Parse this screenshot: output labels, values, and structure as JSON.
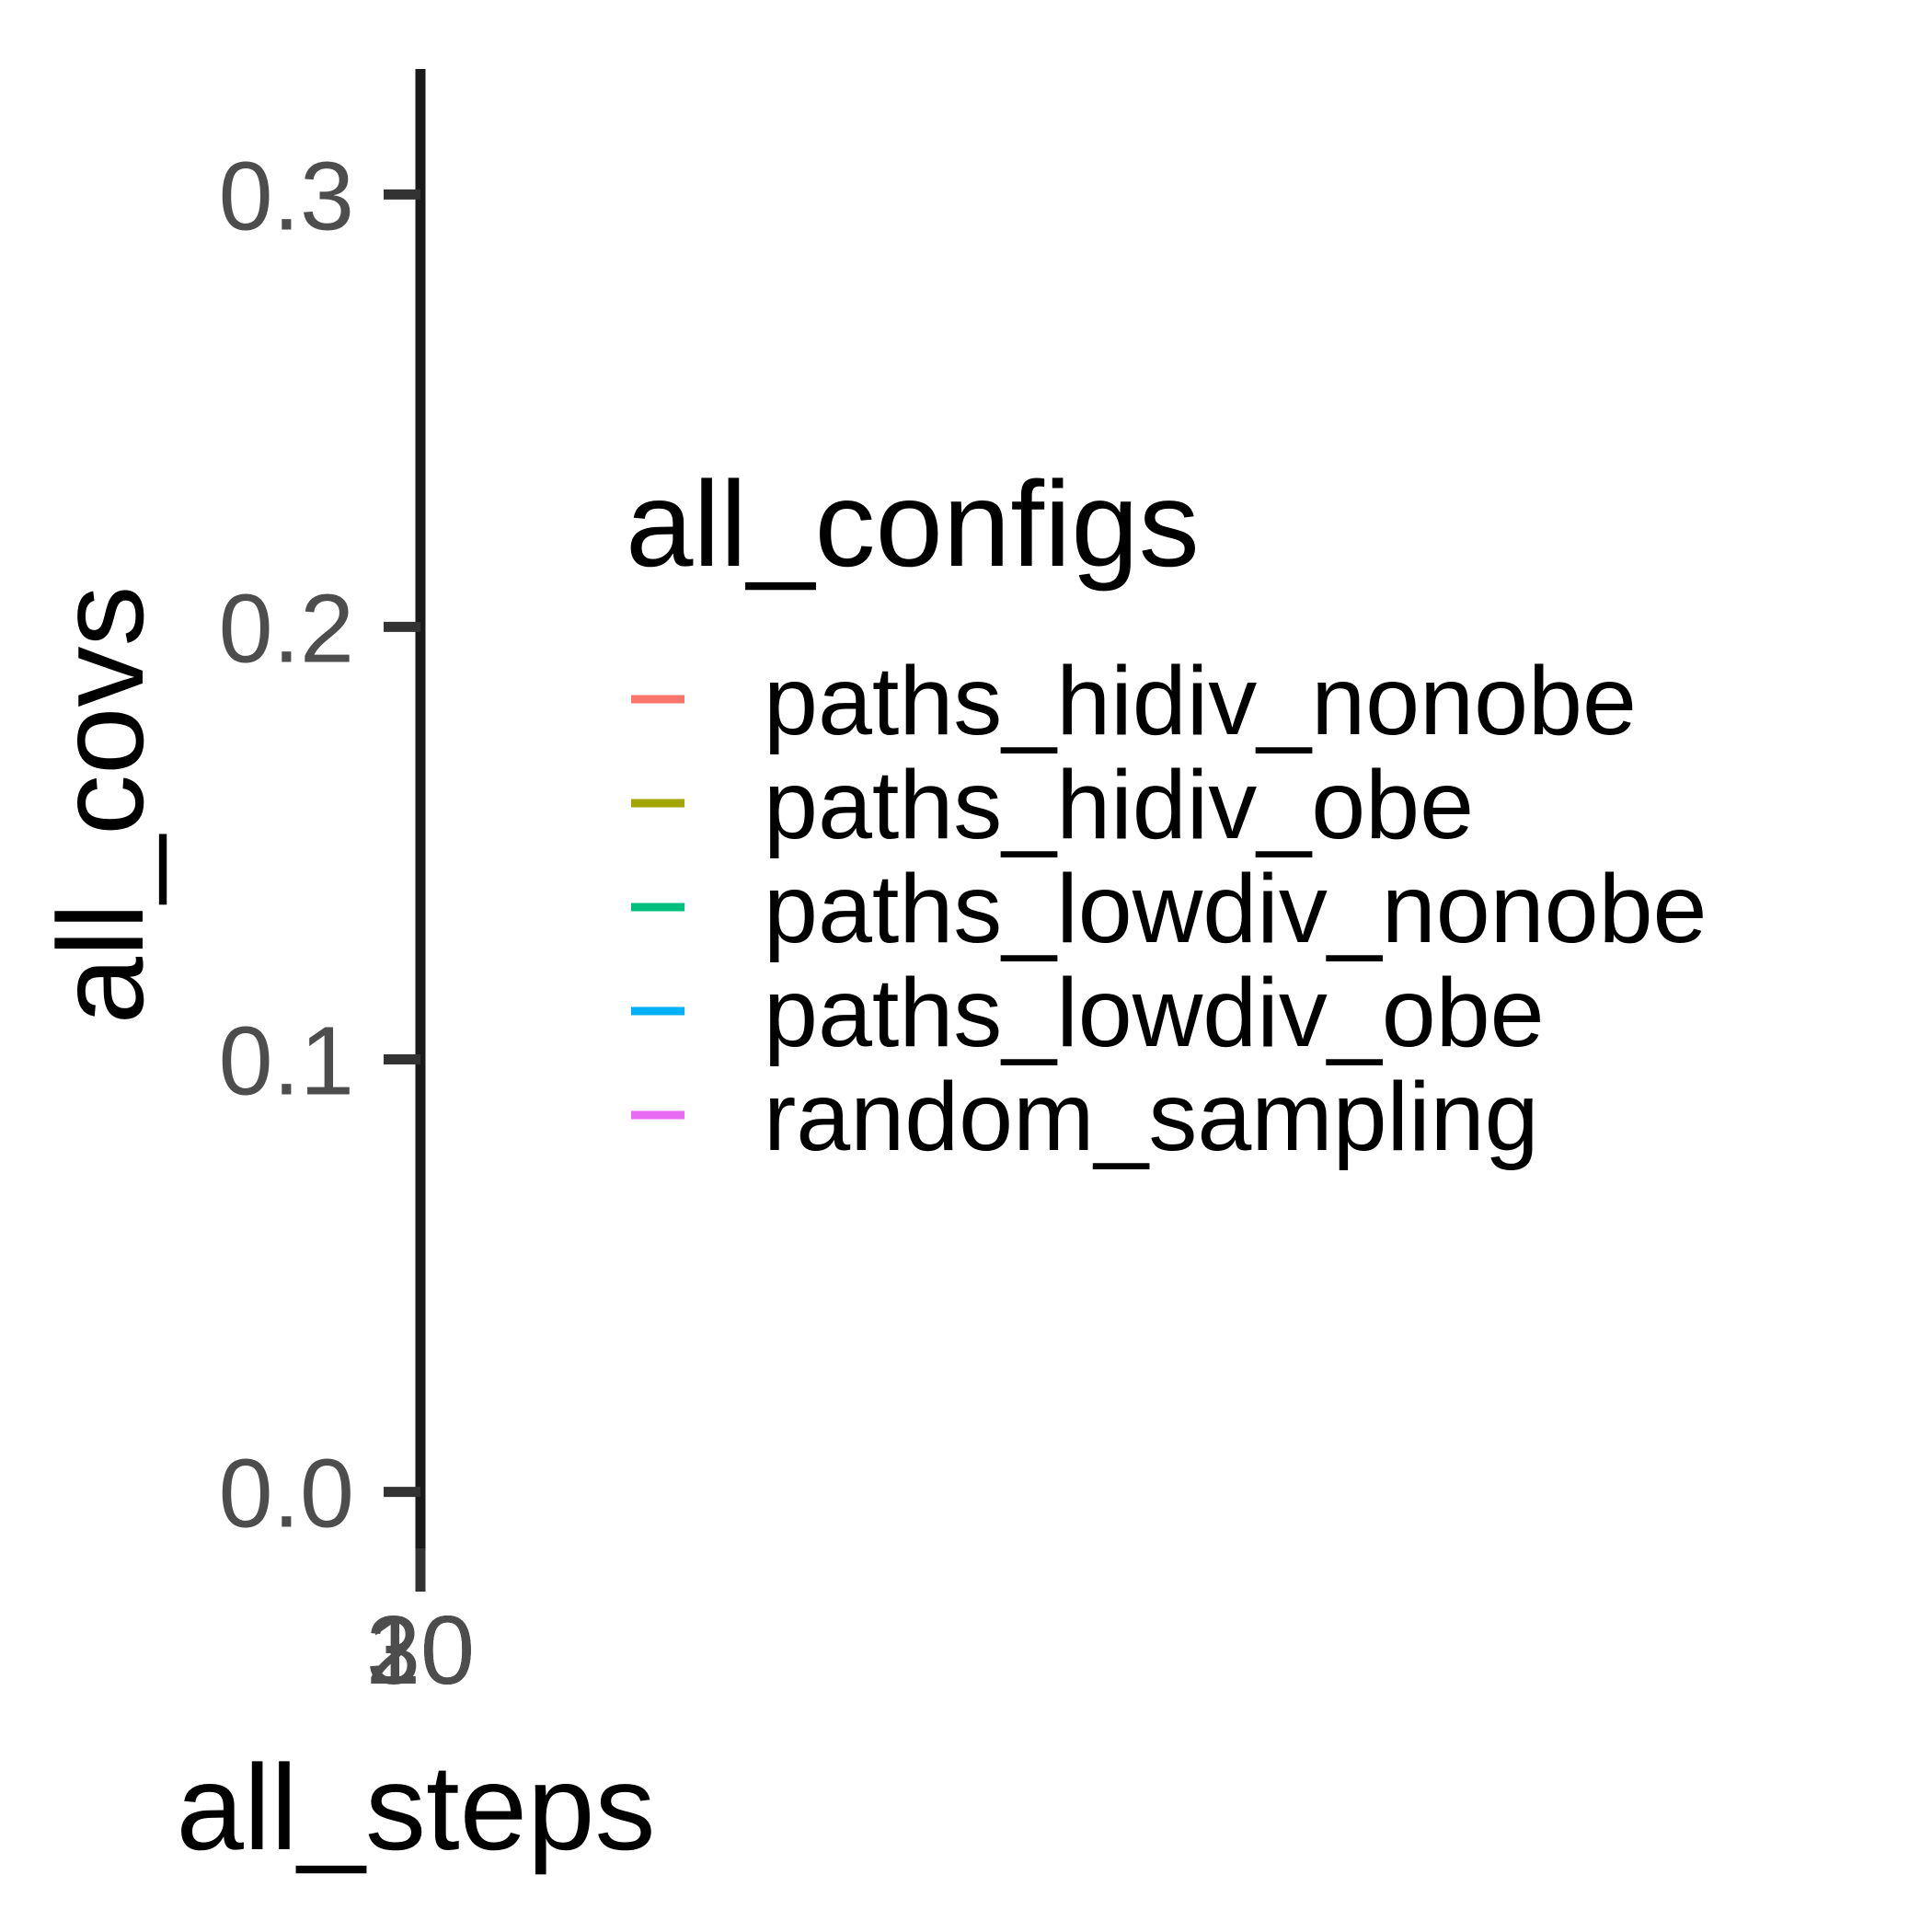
{
  "chart_data": {
    "type": "line",
    "xlabel": "all_steps",
    "ylabel": "all_covs",
    "y_ticks": [
      "0.0",
      "0.1",
      "0.2",
      "0.3"
    ],
    "y_tick_values": [
      0.0,
      0.1,
      0.2,
      0.3
    ],
    "ylim": [
      -0.022,
      0.329
    ],
    "x_ticks": [
      "10",
      "20",
      "30"
    ],
    "x_tick_values": [
      10,
      20,
      30
    ],
    "grid": false,
    "legend": {
      "title": "all_configs",
      "position": "right"
    },
    "series": [
      {
        "name": "paths_hidiv_nonobe",
        "color": "#F8766D",
        "values": []
      },
      {
        "name": "paths_hidiv_obe",
        "color": "#A3A500",
        "values": []
      },
      {
        "name": "paths_lowdiv_nonobe",
        "color": "#00BF7D",
        "values": []
      },
      {
        "name": "paths_lowdiv_obe",
        "color": "#00B0F6",
        "values": []
      },
      {
        "name": "random_sampling",
        "color": "#E76BF3",
        "values": []
      }
    ]
  }
}
